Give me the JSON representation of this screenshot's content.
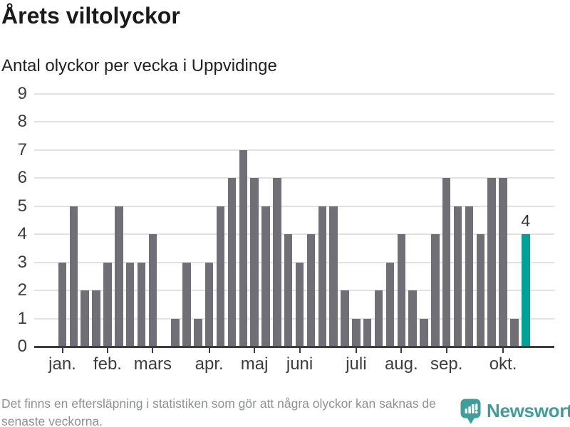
{
  "header": {
    "title": "Årets viltolyckor",
    "subtitle": "Antal olyckor per vecka i Uppvidinge"
  },
  "chart_data": {
    "type": "bar",
    "title": "Årets viltolyckor",
    "subtitle": "Antal olyckor per vecka i Uppvidinge",
    "x_unit": "week",
    "values": [
      3,
      5,
      2,
      2,
      3,
      5,
      3,
      3,
      4,
      null,
      1,
      3,
      1,
      3,
      5,
      6,
      7,
      6,
      5,
      6,
      4,
      3,
      4,
      5,
      5,
      2,
      1,
      1,
      2,
      3,
      4,
      2,
      1,
      4,
      6,
      5,
      5,
      4,
      6,
      6,
      1,
      4
    ],
    "ylim": [
      0,
      9
    ],
    "yticks": [
      0,
      1,
      2,
      3,
      4,
      5,
      6,
      7,
      8,
      9
    ],
    "grid": "horizontal",
    "bar_color": "#706f78",
    "highlight": {
      "index": 41,
      "value": 4,
      "label": "4",
      "color": "#00a298"
    },
    "month_ticks": [
      {
        "label": "jan.",
        "week_index": 0
      },
      {
        "label": "feb.",
        "week_index": 4
      },
      {
        "label": "mars",
        "week_index": 8
      },
      {
        "label": "apr.",
        "week_index": 13
      },
      {
        "label": "maj",
        "week_index": 17
      },
      {
        "label": "juni",
        "week_index": 21
      },
      {
        "label": "juli",
        "week_index": 26
      },
      {
        "label": "aug.",
        "week_index": 30
      },
      {
        "label": "sep.",
        "week_index": 34
      },
      {
        "label": "okt.",
        "week_index": 39
      }
    ]
  },
  "footer": {
    "note": "Det finns en eftersläpning i statistiken som gör att några olyckor kan saknas de\nsenaste veckorna.",
    "brand": "Newsworthy",
    "brand_color": "#3f9e99"
  }
}
